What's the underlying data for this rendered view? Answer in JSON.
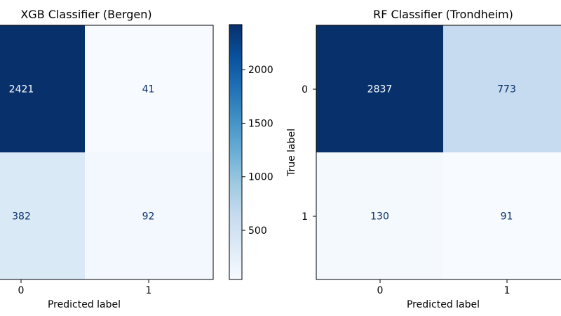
{
  "chart_data": [
    {
      "type": "heatmap",
      "title": "XGB Classifier (Bergen)",
      "xlabel": "Predicted label",
      "ylabel": "",
      "x_ticks": [
        "0",
        "1"
      ],
      "y_ticks": [],
      "matrix": [
        [
          2421,
          41
        ],
        [
          382,
          92
        ]
      ],
      "cell_labels": [
        [
          "2421",
          "41"
        ],
        [
          "382",
          "92"
        ]
      ],
      "colormap": "Blues",
      "colorbar": {
        "ticks": [
          500,
          1000,
          1500,
          2000
        ],
        "tick_labels": [
          "500",
          "1000",
          "1500",
          "2000"
        ],
        "range": [
          41,
          2421
        ]
      }
    },
    {
      "type": "heatmap",
      "title": "RF Classifier (Trondheim)",
      "xlabel": "Predicted label",
      "ylabel": "True label",
      "x_ticks": [
        "0",
        "1"
      ],
      "y_ticks": [
        "0",
        "1"
      ],
      "matrix": [
        [
          2837,
          773
        ],
        [
          130,
          91
        ]
      ],
      "cell_labels": [
        [
          "2837",
          "773"
        ],
        [
          "130",
          "91"
        ]
      ],
      "colormap": "Blues",
      "colorbar": null
    }
  ],
  "colors": {
    "blues_light": "#f7fbff",
    "blues_mid": "#c6dbef",
    "blues_dark": "#08306b",
    "text_dark": "#08306b",
    "text_light": "#f7fbff",
    "axis": "#000000"
  }
}
